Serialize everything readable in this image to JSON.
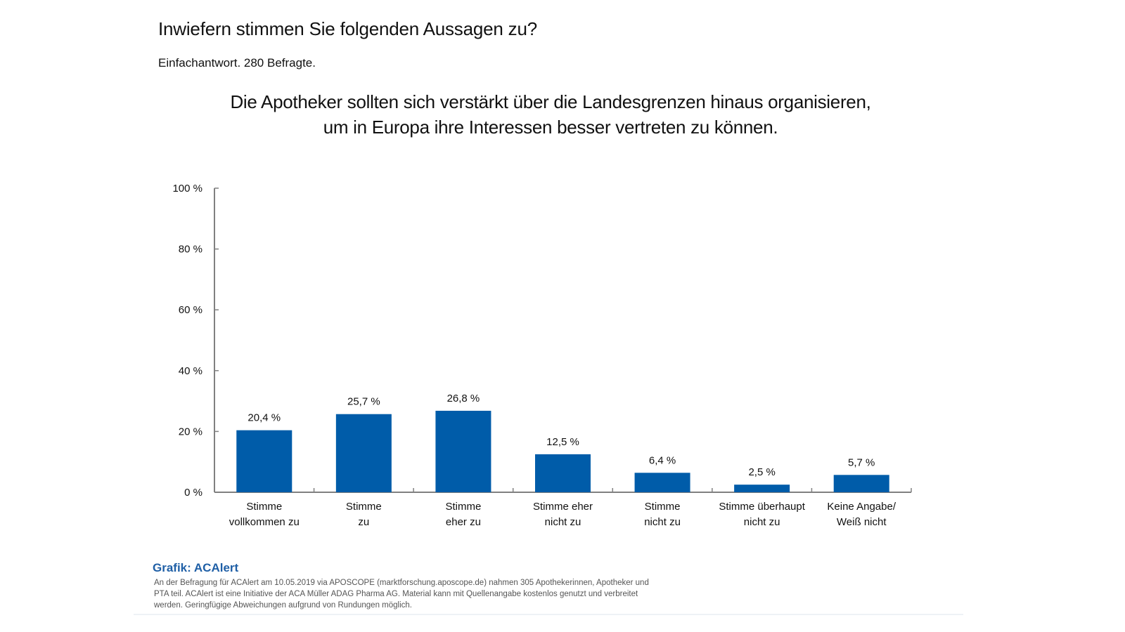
{
  "header": {
    "title": "Inwiefern stimmen Sie folgenden Aussagen zu?",
    "subtitle": "Einfachantwort. 280 Befragte.",
    "question_line1": "Die Apotheker sollten sich verstärkt über die Landesgrenzen hinaus organisieren,",
    "question_line2": "um in Europa ihre Interessen besser vertreten zu können."
  },
  "chart_data": {
    "type": "bar",
    "title": "Die Apotheker sollten sich verstärkt über die Landesgrenzen hinaus organisieren, um in Europa ihre Interessen besser vertreten zu können.",
    "xlabel": "",
    "ylabel": "",
    "ylim": [
      0,
      100
    ],
    "yticks": [
      0,
      20,
      40,
      60,
      80,
      100
    ],
    "ytick_labels": [
      "0 %",
      "20 %",
      "40 %",
      "60 %",
      "80 %",
      "100 %"
    ],
    "grid": false,
    "legend": "none",
    "categories": [
      [
        "Stimme",
        "vollkommen zu"
      ],
      [
        "Stimme",
        "zu"
      ],
      [
        "Stimme",
        "eher zu"
      ],
      [
        "Stimme eher",
        "nicht zu"
      ],
      [
        "Stimme",
        "nicht zu"
      ],
      [
        "Stimme überhaupt",
        "nicht zu"
      ],
      [
        "Keine Angabe/",
        "Weiß nicht"
      ]
    ],
    "values": [
      20.4,
      25.7,
      26.8,
      12.5,
      6.4,
      2.5,
      5.7
    ],
    "value_labels": [
      "20,4 %",
      "25,7 %",
      "26,8 %",
      "12,5 %",
      "6,4 %",
      "2,5 %",
      "5,7 %"
    ],
    "bar_color": "#005ca9",
    "axis_color": "#808080"
  },
  "footer": {
    "source_title": "Grafik: ACAlert",
    "source_text": "An der Befragung für ACAlert am 10.05.2019 via APOSCOPE (marktforschung.aposcope.de) nahmen 305 Apothekerinnen, Apotheker und PTA teil. ACAlert ist eine Initiative der ACA Müller ADAG Pharma AG. Material kann mit Quellenangabe kostenlos genutzt und verbreitet werden. Geringfügige Abweichungen aufgrund von Rundungen möglich."
  }
}
